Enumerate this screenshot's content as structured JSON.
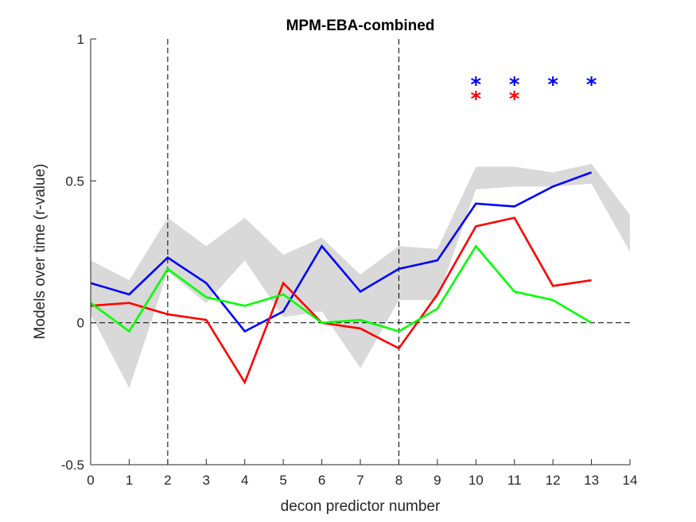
{
  "chart_data": {
    "type": "line",
    "title": "MPM-EBA-combined",
    "xlabel": "decon predictor number",
    "ylabel": "Models over time (r-value)",
    "xlim": [
      0,
      14
    ],
    "ylim": [
      -0.5,
      1
    ],
    "xticks": [
      0,
      1,
      2,
      3,
      4,
      5,
      6,
      7,
      8,
      9,
      10,
      11,
      12,
      13,
      14
    ],
    "yticks": [
      -0.5,
      0,
      0.5,
      1
    ],
    "ytick_labels": [
      "-0.5",
      "0",
      "0.5",
      "1"
    ],
    "grid": false,
    "vertical_reference_lines": [
      2,
      8
    ],
    "horizontal_reference_line": 0,
    "band": {
      "color": "#d9d9d9",
      "x": [
        0,
        1,
        2,
        3,
        4,
        5,
        6,
        7,
        8,
        9,
        10,
        11,
        12,
        13,
        14
      ],
      "upper": [
        0.22,
        0.15,
        0.37,
        0.27,
        0.37,
        0.24,
        0.3,
        0.17,
        0.27,
        0.26,
        0.55,
        0.55,
        0.53,
        0.56,
        0.38
      ],
      "lower": [
        0.03,
        -0.23,
        0.18,
        0.07,
        0.22,
        0.02,
        0.04,
        -0.16,
        0.08,
        0.08,
        0.47,
        0.48,
        0.48,
        0.49,
        0.25
      ]
    },
    "series": [
      {
        "color": "#0000ff",
        "x": [
          0,
          1,
          2,
          3,
          4,
          5,
          6,
          7,
          8,
          9,
          10,
          11,
          12,
          13
        ],
        "values": [
          0.14,
          0.1,
          0.23,
          0.14,
          -0.03,
          0.04,
          0.27,
          0.11,
          0.19,
          0.22,
          0.42,
          0.41,
          0.48,
          0.53
        ]
      },
      {
        "color": "#ff0000",
        "x": [
          0,
          1,
          2,
          3,
          4,
          5,
          6,
          7,
          8,
          9,
          10,
          11,
          12,
          13
        ],
        "values": [
          0.06,
          0.07,
          0.03,
          0.01,
          -0.21,
          0.14,
          0.0,
          -0.02,
          -0.09,
          0.1,
          0.34,
          0.37,
          0.13,
          0.15
        ]
      },
      {
        "color": "#00ff00",
        "x": [
          0,
          1,
          2,
          3,
          4,
          5,
          6,
          7,
          8,
          9,
          10,
          11,
          12,
          13
        ],
        "values": [
          0.07,
          -0.03,
          0.19,
          0.09,
          0.06,
          0.1,
          0.0,
          0.01,
          -0.03,
          0.05,
          0.27,
          0.11,
          0.08,
          0.0
        ]
      }
    ],
    "significance_markers": [
      {
        "symbol": "*",
        "color": "#0000ff",
        "x": [
          10,
          11,
          12,
          13
        ],
        "y": 0.86
      },
      {
        "symbol": "*",
        "color": "#ff0000",
        "x": [
          10,
          11
        ],
        "y": 0.81
      }
    ]
  }
}
